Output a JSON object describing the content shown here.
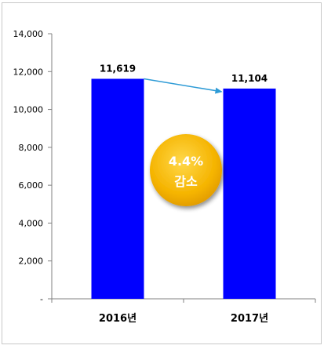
{
  "chart_data": {
    "type": "bar",
    "title": "",
    "xlabel": "",
    "ylabel": "",
    "categories": [
      "2016년",
      "2017년"
    ],
    "values": [
      11619,
      11104
    ],
    "value_labels": [
      "11,619",
      "11,104"
    ],
    "ylim": [
      0,
      14000
    ],
    "y_ticks": [
      0,
      2000,
      4000,
      6000,
      8000,
      10000,
      12000,
      14000
    ],
    "y_tick_labels": [
      "-",
      "2,000",
      "4,000",
      "6,000",
      "8,000",
      "10,000",
      "12,000",
      "14,000"
    ],
    "grid": false,
    "legend": "none",
    "bar_color": "#0000ff",
    "arrow_color": "#2e9bd6",
    "annotation": {
      "line1": "4.4%",
      "line2": "감소",
      "fill_color": "#f5b400",
      "text_color": "#ffffff"
    }
  }
}
